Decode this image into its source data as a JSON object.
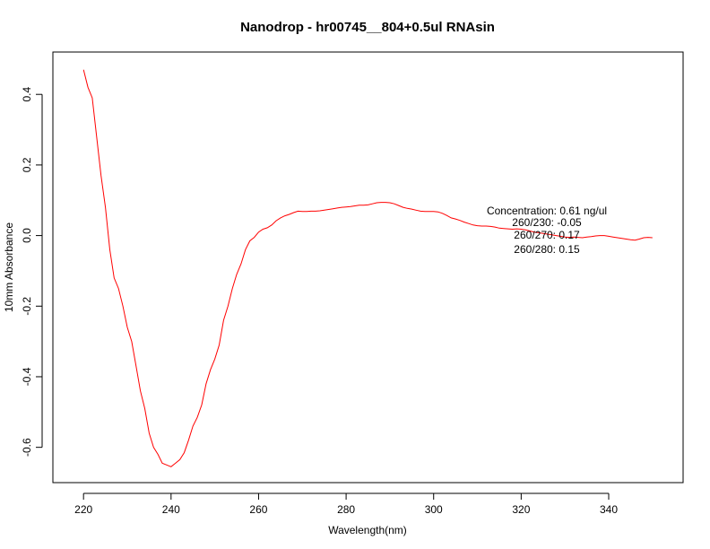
{
  "chart_data": {
    "type": "line",
    "title": "Nanodrop - hr00745__804+0.5ul RNAsin",
    "xlabel": "Wavelength(nm)",
    "ylabel": "10mm Absorbance",
    "xlim": [
      213,
      357
    ],
    "ylim": [
      -0.7,
      0.52
    ],
    "x_ticks": [
      220,
      240,
      260,
      280,
      300,
      320,
      340
    ],
    "y_ticks": [
      -0.6,
      -0.4,
      -0.2,
      0.0,
      0.2,
      0.4
    ],
    "x_tick_labels": [
      "220",
      "240",
      "260",
      "280",
      "300",
      "320",
      "340"
    ],
    "y_tick_labels": [
      "-0.6",
      "-0.4",
      "-0.2",
      "0.0",
      "0.2",
      "0.4"
    ],
    "grid": false,
    "legend": "none",
    "series": [
      {
        "color": "#ff0000",
        "x": [
          220,
          221,
          222,
          223,
          224,
          225,
          226,
          227,
          228,
          229,
          230,
          231,
          232,
          233,
          234,
          235,
          236,
          237,
          238,
          239,
          240,
          241,
          242,
          243,
          244,
          245,
          246,
          247,
          248,
          249,
          250,
          251,
          252,
          253,
          254,
          255,
          256,
          257,
          258,
          259,
          260,
          261,
          262,
          263,
          264,
          265,
          266,
          267,
          268,
          269,
          270,
          271,
          272,
          273,
          274,
          275,
          276,
          277,
          278,
          279,
          280,
          281,
          282,
          283,
          284,
          285,
          286,
          287,
          288,
          289,
          290,
          291,
          292,
          293,
          294,
          295,
          296,
          297,
          298,
          299,
          300,
          301,
          302,
          303,
          304,
          305,
          306,
          307,
          308,
          309,
          310,
          311,
          312,
          313,
          314,
          315,
          316,
          317,
          318,
          319,
          320,
          321,
          322,
          323,
          324,
          325,
          326,
          327,
          328,
          329,
          330,
          331,
          332,
          333,
          334,
          335,
          336,
          337,
          338,
          339,
          340,
          341,
          342,
          343,
          344,
          345,
          346,
          347,
          348,
          349,
          350
        ],
        "y": [
          0.47,
          0.42,
          0.39,
          0.28,
          0.17,
          0.08,
          -0.04,
          -0.12,
          -0.15,
          -0.2,
          -0.26,
          -0.3,
          -0.37,
          -0.44,
          -0.49,
          -0.56,
          -0.6,
          -0.62,
          -0.645,
          -0.65,
          -0.655,
          -0.645,
          -0.635,
          -0.615,
          -0.58,
          -0.54,
          -0.515,
          -0.48,
          -0.42,
          -0.38,
          -0.35,
          -0.31,
          -0.24,
          -0.2,
          -0.15,
          -0.11,
          -0.08,
          -0.04,
          -0.015,
          -0.005,
          0.01,
          0.018,
          0.022,
          0.03,
          0.042,
          0.05,
          0.056,
          0.06,
          0.065,
          0.069,
          0.068,
          0.068,
          0.069,
          0.069,
          0.07,
          0.072,
          0.074,
          0.076,
          0.078,
          0.08,
          0.081,
          0.082,
          0.084,
          0.086,
          0.086,
          0.087,
          0.09,
          0.093,
          0.094,
          0.094,
          0.093,
          0.09,
          0.085,
          0.08,
          0.077,
          0.075,
          0.072,
          0.069,
          0.068,
          0.068,
          0.068,
          0.067,
          0.063,
          0.057,
          0.05,
          0.047,
          0.043,
          0.038,
          0.034,
          0.03,
          0.028,
          0.027,
          0.027,
          0.026,
          0.024,
          0.021,
          0.02,
          0.019,
          0.018,
          0.019,
          0.018,
          0.016,
          0.013,
          0.01,
          0.008,
          0.006,
          0.004,
          0.002,
          0.0,
          -0.002,
          -0.004,
          -0.005,
          -0.004,
          -0.005,
          -0.006,
          -0.004,
          -0.003,
          -0.001,
          0.0,
          0.0,
          -0.002,
          -0.004,
          -0.006,
          -0.008,
          -0.01,
          -0.012,
          -0.013,
          -0.01,
          -0.006,
          -0.005,
          -0.006
        ]
      }
    ],
    "annotations": [
      "Concentration: 0.61 ng/ul",
      "260/230: -0.05",
      "260/270: 0.17",
      "260/280: 0.15"
    ]
  }
}
